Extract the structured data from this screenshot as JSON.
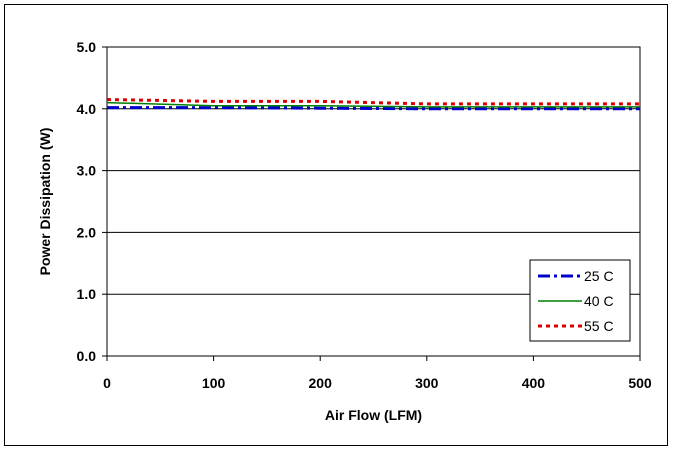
{
  "chart_data": {
    "type": "line",
    "title": "",
    "xlabel": "Air Flow (LFM)",
    "ylabel": "Power Dissipation (W)",
    "xlim": [
      0,
      500
    ],
    "ylim": [
      0,
      5
    ],
    "x_ticks": [
      "0",
      "100",
      "200",
      "300",
      "400",
      "500"
    ],
    "y_ticks": [
      "0.0",
      "1.0",
      "2.0",
      "3.0",
      "4.0",
      "5.0"
    ],
    "grid": "horizontal",
    "legend_position": "bottom-right",
    "x": [
      0,
      100,
      200,
      300,
      400,
      500
    ],
    "series": [
      {
        "name": "25 C",
        "values": [
          4.02,
          4.02,
          4.01,
          4.0,
          4.0,
          4.0
        ],
        "color": "#0000cc",
        "style": "dash-dot"
      },
      {
        "name": "40 C",
        "values": [
          4.1,
          4.05,
          4.05,
          4.03,
          4.03,
          4.03
        ],
        "color": "#008000",
        "style": "solid"
      },
      {
        "name": "55 C",
        "values": [
          4.15,
          4.12,
          4.12,
          4.08,
          4.08,
          4.08
        ],
        "color": "#dd0000",
        "style": "dotted"
      }
    ]
  }
}
